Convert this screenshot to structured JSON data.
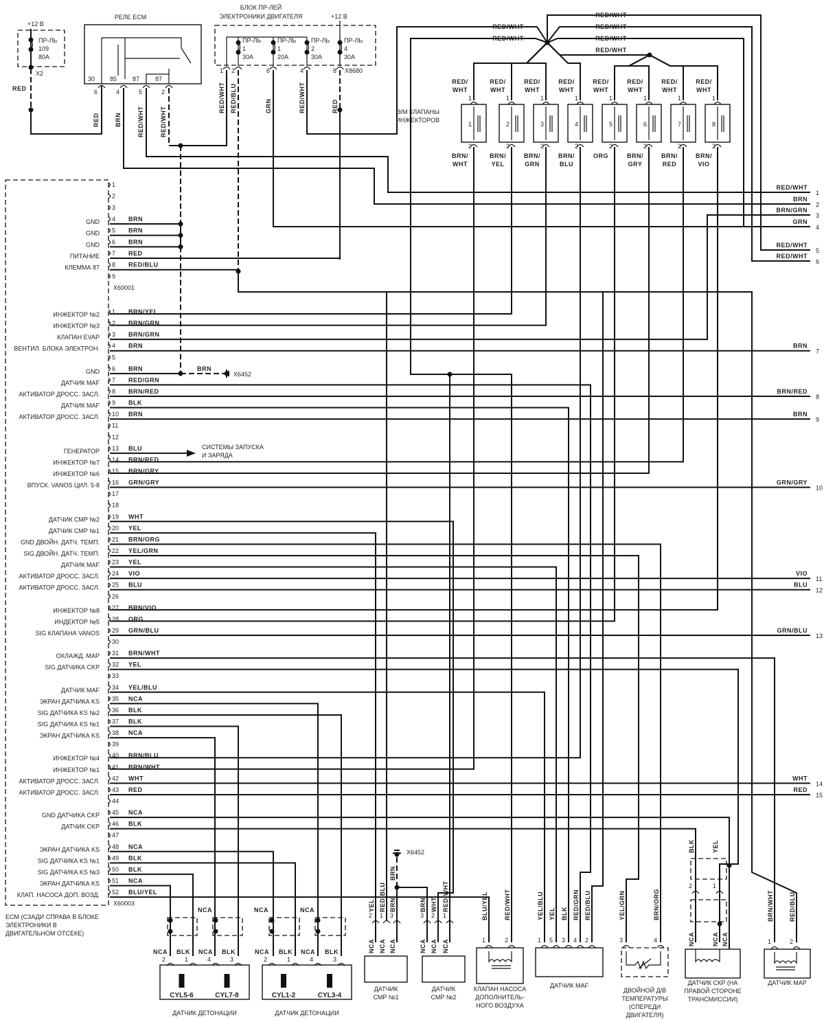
{
  "top": {
    "fuse_block": {
      "supply": "+12 В",
      "fuse": [
        "ПР-ЛЬ",
        "109",
        "80A"
      ],
      "connector": "X2",
      "wire": "RED"
    },
    "ecm_relay": {
      "title": "РЕЛЕ ECM",
      "terminals": [
        "30",
        "85",
        "87",
        "87"
      ],
      "pins": [
        "6",
        "4",
        "5",
        "2"
      ],
      "wires": [
        "RED",
        "BRN",
        "RED/WHT",
        "RED/WHT"
      ]
    },
    "relay_block": {
      "title_line1": "БЛОК ПР-ЛЕЙ",
      "title_line2": "ЭЛЕКТРОНИКИ ДВИГАТЕЛЯ",
      "supply": "+12 В",
      "fuses": [
        {
          "name": "ПР-ЛЬ",
          "num": "1",
          "rating": "30A"
        },
        {
          "name": "ПР-ЛЬ",
          "num": "1",
          "rating": "20A"
        },
        {
          "name": "ПР-ЛЬ",
          "num": "2",
          "rating": "30A"
        },
        {
          "name": "ПР-ЛЬ",
          "num": "4",
          "rating": "30A"
        }
      ],
      "pins": [
        "1",
        "2",
        "6",
        "4",
        "8"
      ],
      "connector": "X8680",
      "wires": [
        "RED/WHT",
        "RED/BLU",
        "GRN",
        "RED/WHT",
        "RED"
      ]
    }
  },
  "injectors": {
    "title_line1": "Э/М КЛАПАНЫ",
    "title_line2": "ИНЖЕКТОРОВ",
    "bus_labels": [
      "RED/WHT",
      "RED/WHT",
      "RED/WHT",
      "RED/WHT",
      "RED/WHT",
      "RED/WHT"
    ],
    "pin_top": "1",
    "pin_bottom": "2",
    "items": [
      {
        "num": "1",
        "top": [
          "RED/",
          "WHT"
        ],
        "bottom": [
          "BRN/",
          "WHT"
        ]
      },
      {
        "num": "2",
        "top": [
          "RED/",
          "WHT"
        ],
        "bottom": [
          "BRN/",
          "YEL"
        ]
      },
      {
        "num": "3",
        "top": [
          "RED/",
          "WHT"
        ],
        "bottom": [
          "BRN/",
          "GRN"
        ]
      },
      {
        "num": "4",
        "top": [
          "RED/",
          "WHT"
        ],
        "bottom": [
          "BRN/",
          "BLU"
        ]
      },
      {
        "num": "5",
        "top": [
          "RED/",
          "WHT"
        ],
        "bottom": [
          "ORG",
          ""
        ]
      },
      {
        "num": "6",
        "top": [
          "RED/",
          "WHT"
        ],
        "bottom": [
          "BRN/",
          "GRY"
        ]
      },
      {
        "num": "7",
        "top": [
          "RED/",
          "WHT"
        ],
        "bottom": [
          "BRN/",
          "RED"
        ]
      },
      {
        "num": "8",
        "top": [
          "RED/",
          "WHT"
        ],
        "bottom": [
          "BRN/",
          "VIO"
        ]
      }
    ]
  },
  "ecm": {
    "caption": [
      "ECM (СЗАДИ СПРАВА В БЛОКЕ",
      "ЭЛЕКТРОНИКИ В",
      "ДВИГАТЕЛЬНОМ ОТСЕКЕ)"
    ],
    "ground": {
      "wire": "BRN",
      "connector": "X6452"
    },
    "arrow_target": [
      "СИСТЕМЫ ЗАПУСКА",
      "И ЗАРЯДА"
    ],
    "conn1": {
      "name": "X60001",
      "pins": [
        {
          "n": "1",
          "label": "",
          "wire": ""
        },
        {
          "n": "2",
          "label": "",
          "wire": ""
        },
        {
          "n": "3",
          "label": "",
          "wire": ""
        },
        {
          "n": "4",
          "label": "GND",
          "wire": "BRN"
        },
        {
          "n": "5",
          "label": "GND",
          "wire": "BRN"
        },
        {
          "n": "6",
          "label": "GND",
          "wire": "BRN"
        },
        {
          "n": "7",
          "label": "ПИТАНИЕ",
          "wire": "RED"
        },
        {
          "n": "8",
          "label": "КЛЕММА 87",
          "wire": "RED/BLU"
        },
        {
          "n": "9",
          "label": "",
          "wire": ""
        }
      ]
    },
    "conn2": {
      "name": "X60003",
      "pins": [
        {
          "n": "1",
          "label": "ИНЖЕКТОР №2",
          "wire": "BRN/YEL"
        },
        {
          "n": "2",
          "label": "ИНЖЕКТОР №3",
          "wire": "BRN/GRN"
        },
        {
          "n": "3",
          "label": "КЛАПАН EVAP",
          "wire": "BRN/GRN"
        },
        {
          "n": "4",
          "label": "ВЕНТИЛ. БЛОКА ЭЛЕКТРОН.",
          "wire": "BRN"
        },
        {
          "n": "5",
          "label": "",
          "wire": ""
        },
        {
          "n": "6",
          "label": "GND",
          "wire": "BRN"
        },
        {
          "n": "7",
          "label": "ДАТЧИК MAF",
          "wire": "RED/GRN"
        },
        {
          "n": "8",
          "label": "АКТИВАТОР ДРОСС. ЗАСЛ.",
          "wire": "BRN/RED"
        },
        {
          "n": "9",
          "label": "ДАТЧИК MAF",
          "wire": "BLK"
        },
        {
          "n": "10",
          "label": "АКТИВАТОР ДРОСС. ЗАСЛ.",
          "wire": "BRN"
        },
        {
          "n": "11",
          "label": "",
          "wire": ""
        },
        {
          "n": "12",
          "label": "",
          "wire": ""
        },
        {
          "n": "13",
          "label": "ГЕНЕРАТОР",
          "wire": "BLU"
        },
        {
          "n": "14",
          "label": "ИНЖЕКТОР №7",
          "wire": "BRN/RED"
        },
        {
          "n": "15",
          "label": "ИНЖЕКТОР №6",
          "wire": "BRN/GRY"
        },
        {
          "n": "16",
          "label": "ВПУСК. VANOS ЦИЛ. 5-8",
          "wire": "GRN/GRY"
        },
        {
          "n": "17",
          "label": "",
          "wire": ""
        },
        {
          "n": "18",
          "label": "",
          "wire": ""
        },
        {
          "n": "19",
          "label": "ДАТЧИК СМР №2",
          "wire": "WHT"
        },
        {
          "n": "20",
          "label": "ДАТЧИК СМР №1",
          "wire": "YEL"
        },
        {
          "n": "21",
          "label": "GND ДВОЙН. ДАТЧ. ТЕМП.",
          "wire": "BRN/ORG"
        },
        {
          "n": "22",
          "label": "SIG ДВОЙН. ДАТЧ. ТЕМП.",
          "wire": "YEL/GRN"
        },
        {
          "n": "23",
          "label": "ДАТЧИК MAF",
          "wire": "YEL"
        },
        {
          "n": "24",
          "label": "АКТИВАТОР ДРОСС. ЗАСЛ.",
          "wire": "VIO"
        },
        {
          "n": "25",
          "label": "АКТИВАТОР ДРОСС. ЗАСЛ.",
          "wire": "BLU"
        },
        {
          "n": "26",
          "label": "",
          "wire": ""
        },
        {
          "n": "27",
          "label": "ИНЖЕКТОР №8",
          "wire": "BRN/VIO"
        },
        {
          "n": "28",
          "label": "ИНДЕКТОР №5",
          "wire": "ORG"
        },
        {
          "n": "29",
          "label": "SIG КЛАПАНА VANOS",
          "wire": "GRN/BLU"
        },
        {
          "n": "30",
          "label": "",
          "wire": ""
        },
        {
          "n": "31",
          "label": "ОХЛАЖД. MAP",
          "wire": "BRN/WHT"
        },
        {
          "n": "32",
          "label": "SIG ДАТЧИКА CKP",
          "wire": "YEL"
        },
        {
          "n": "33",
          "label": "",
          "wire": ""
        },
        {
          "n": "34",
          "label": "ДАТЧИК MAF",
          "wire": "YEL/BLU"
        },
        {
          "n": "35",
          "label": "ЭКРАН ДАТЧИКА KS",
          "wire": "NCA"
        },
        {
          "n": "36",
          "label": "SIG ДАТЧИКА KS №2",
          "wire": "BLK"
        },
        {
          "n": "37",
          "label": "SIG ДАТЧИКА KS №1",
          "wire": "BLK"
        },
        {
          "n": "38",
          "label": "ЭКРАН ДАТЧИКА KS",
          "wire": "NCA"
        },
        {
          "n": "39",
          "label": "",
          "wire": ""
        },
        {
          "n": "40",
          "label": "ИНЖЕКТОР №4",
          "wire": "BRN/BLU"
        },
        {
          "n": "41",
          "label": "ИНЖЕКТОР №1",
          "wire": "BRN/WHT"
        },
        {
          "n": "42",
          "label": "АКТИВАТОР ДРОСС. ЗАСЛ.",
          "wire": "WHT"
        },
        {
          "n": "43",
          "label": "АКТИВАТОР ДРОСС. ЗАСЛ.",
          "wire": "RED"
        },
        {
          "n": "44",
          "label": "",
          "wire": ""
        },
        {
          "n": "45",
          "label": "GND ДАТЧИКА CKP",
          "wire": "NCA"
        },
        {
          "n": "46",
          "label": "ДАТЧИК CKP",
          "wire": "BLK"
        },
        {
          "n": "47",
          "label": "",
          "wire": ""
        },
        {
          "n": "48",
          "label": "ЭКРАН ДАТЧИКА KS",
          "wire": "NCA"
        },
        {
          "n": "49",
          "label": "SIG ДАТЧИКА KS №1",
          "wire": "BLK"
        },
        {
          "n": "50",
          "label": "SIG ДАТЧИКА KS №3",
          "wire": "BLK"
        },
        {
          "n": "51",
          "label": "ЭКРАН ДАТЧИКА KS",
          "wire": "NCA"
        },
        {
          "n": "52",
          "label": "КЛАП. НАСОСА ДОП. ВОЗД.",
          "wire": "BLU/YEL"
        }
      ]
    }
  },
  "right_connectors": [
    {
      "n": "1",
      "wire": "RED/WHT"
    },
    {
      "n": "2",
      "wire": "BRN"
    },
    {
      "n": "3",
      "wire": "BRN/GRN"
    },
    {
      "n": "4",
      "wire": "GRN"
    },
    {
      "n": "5",
      "wire": "RED/WHT"
    },
    {
      "n": "6",
      "wire": "RED/WHT"
    },
    {
      "n": "7",
      "wire": "BRN"
    },
    {
      "n": "8",
      "wire": "BRN/RED"
    },
    {
      "n": "9",
      "wire": "BRN"
    },
    {
      "n": "10",
      "wire": "GRN/GRY"
    },
    {
      "n": "11",
      "wire": "VIO"
    },
    {
      "n": "12",
      "wire": "BLU"
    },
    {
      "n": "13",
      "wire": "GRN/BLU"
    },
    {
      "n": "14",
      "wire": "WHT"
    },
    {
      "n": "15",
      "wire": "RED"
    }
  ],
  "bottom": {
    "knock_sensors": [
      {
        "caption": "ДАТЧИК ДЕТОНАЦИИ",
        "elements": [
          "CYL5-6",
          "CYL7-8"
        ],
        "pins": [
          "2",
          "1",
          "4",
          "3"
        ],
        "wires": [
          "NCA",
          "BLK",
          "NCA",
          "BLK"
        ]
      },
      {
        "caption": "ДАТЧИК ДЕТОНАЦИИ",
        "elements": [
          "CYL1-2",
          "CYL3-4"
        ],
        "pins": [
          "2",
          "1",
          "4",
          "3"
        ],
        "wires": [
          "NCA",
          "BLK",
          "NCA",
          "BLK"
        ]
      }
    ],
    "shield_labels": [
      "NCA",
      "NCA",
      "NCA"
    ],
    "cmp1": {
      "caption": [
        "ДАТЧИК",
        "СМР №1"
      ],
      "pins": [
        "2",
        "1",
        "3"
      ],
      "wires": [
        "YEL",
        "RED/BLU",
        "BRN"
      ],
      "shield": "NCA"
    },
    "cmp2": {
      "caption": [
        "ДАТЧИК",
        "СМР №2"
      ],
      "pins": [
        "3",
        "2",
        "1"
      ],
      "wires": [
        "BRN",
        "WHT",
        "RED/WHT"
      ],
      "shield": "NCA"
    },
    "ground": {
      "connector": "X6452",
      "wire": "BRN"
    },
    "air_pump_valve": {
      "caption": [
        "КЛАПАН НАСОСА",
        "ДОПОЛНИТЕЛЬ-",
        "НОГО ВОЗДУХА"
      ],
      "pins": [
        "1",
        "2"
      ],
      "wires": [
        "BLU/YEL",
        "RED/WHT"
      ]
    },
    "maf": {
      "caption": "ДАТЧИК MAF",
      "pins": [
        "1",
        "5",
        "3",
        "4",
        "2"
      ],
      "wires": [
        "YEL/BLU",
        "YEL",
        "BLK",
        "RED/GRN",
        "RED/BLU"
      ]
    },
    "temp": {
      "caption": [
        "ДВОЙНОЙ Д/В",
        "ТЕМПЕРАТУРЫ",
        "(СПЕРЕДИ",
        "ДВИГАТЕЛЯ)"
      ],
      "pins": [
        "3",
        "4"
      ],
      "wires": [
        "YEL/GRN",
        "BRN/ORG"
      ]
    },
    "ckp": {
      "caption": [
        "ДАТЧИК СКР (НА",
        "ПРАВОЙ СТОРОНЕ",
        "ТРАНСМИССИИ)"
      ],
      "pins": [
        "2",
        "1"
      ],
      "wires": [
        "BLK",
        "YEL"
      ],
      "shield": "NCA"
    },
    "map": {
      "caption": "ДАТЧИК MAP",
      "pins": [
        "1",
        "2"
      ],
      "wires": [
        "BRN/WHT",
        "RED/BLU"
      ]
    }
  }
}
